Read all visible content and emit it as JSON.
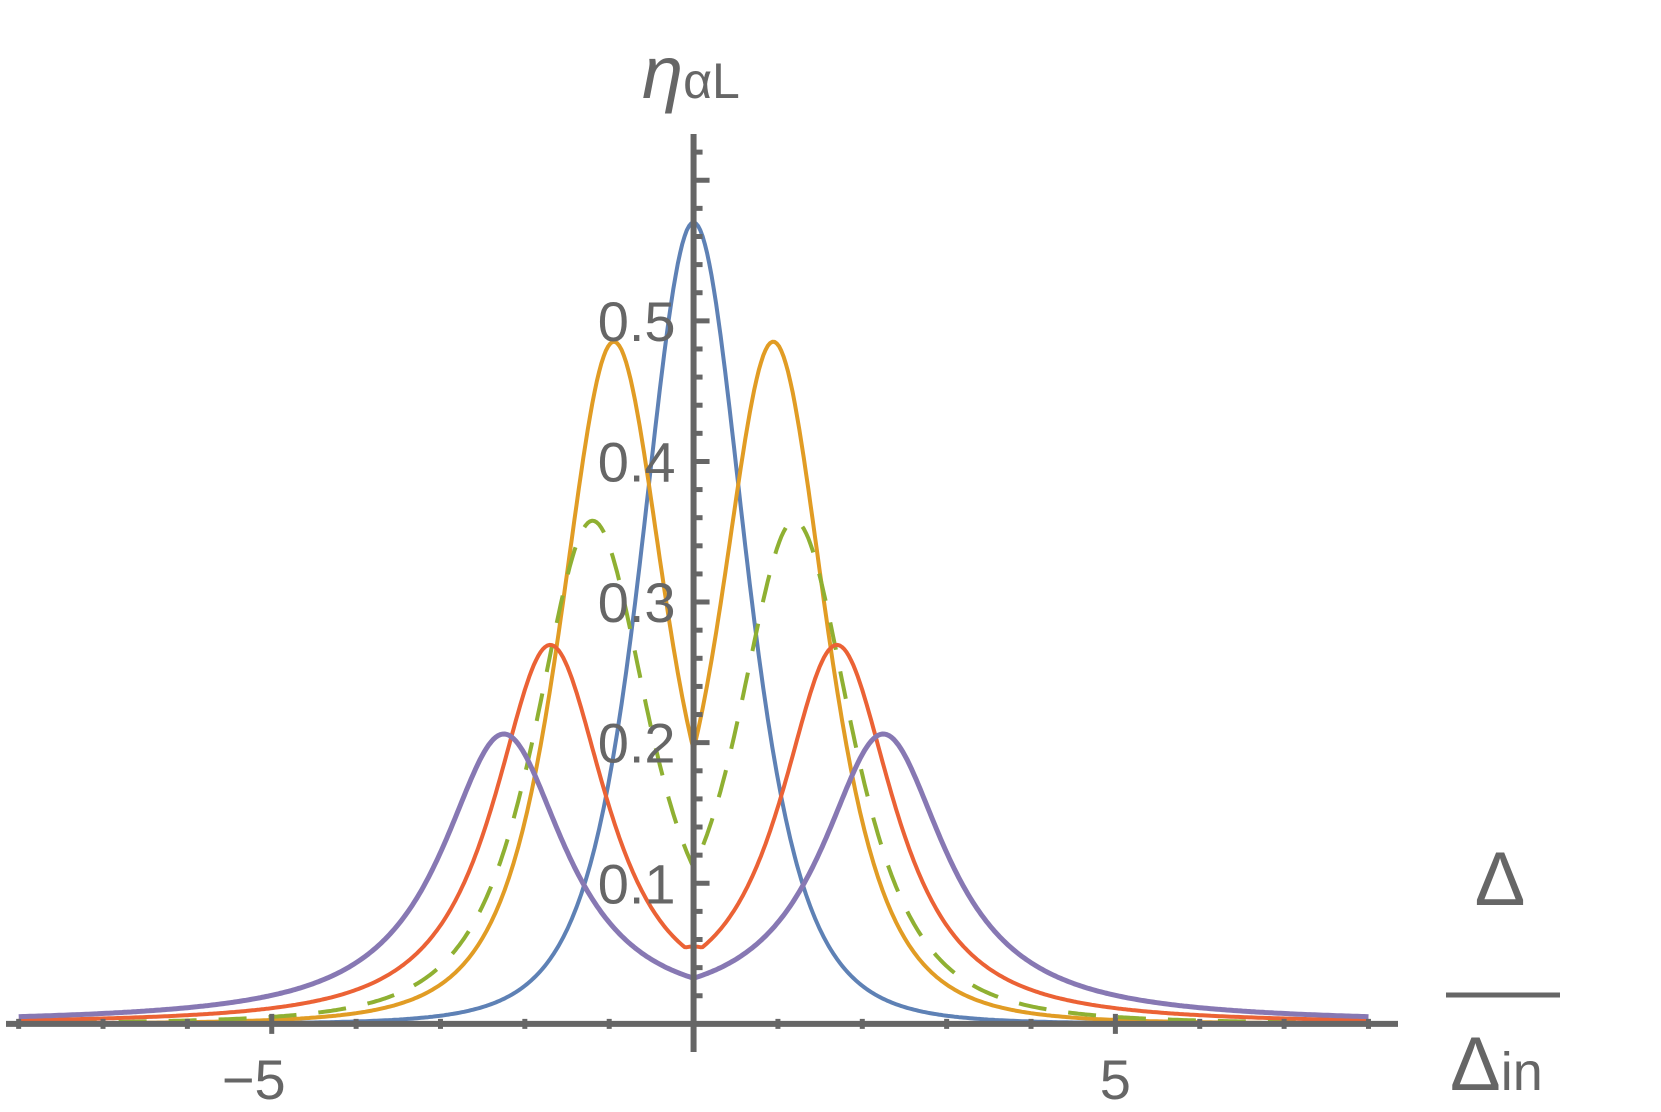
{
  "chart_data": {
    "type": "line",
    "title": "",
    "ylabel": {
      "main": "η",
      "sub": "αL"
    },
    "xlabel": {
      "numerator": "Δ",
      "denominator": "Δ",
      "denominator_sub": "in"
    },
    "xlim": [
      -8.15,
      8.35
    ],
    "ylim": [
      -0.02,
      0.64
    ],
    "x_ticks": [
      -5,
      5
    ],
    "x_tick_labels": [
      "−5",
      "5"
    ],
    "y_ticks": [
      0.1,
      0.2,
      0.3,
      0.4,
      0.5
    ],
    "y_tick_labels": [
      "0.1",
      "0.2",
      "0.3",
      "0.4",
      "0.5"
    ],
    "grid": false,
    "legend": "none",
    "series": [
      {
        "color": "#5e81b5",
        "dashed": false,
        "width": 4,
        "x_range": [
          -8,
          8
        ],
        "model": {
          "a": 0.57,
          "d": 0,
          "g": 1.25,
          "p": 2.4
        }
      },
      {
        "color": "#e19c24",
        "dashed": false,
        "width": 4,
        "x_range": [
          -8,
          8
        ],
        "model": {
          "a": 0.48,
          "d": 0.95,
          "g": 1.15,
          "p": 2.0
        }
      },
      {
        "color": "#8fb032",
        "dashed": true,
        "width": 4,
        "x_range": [
          -8,
          8
        ],
        "model": {
          "a": 0.355,
          "d": 1.2,
          "g": 1.12,
          "p": 1.7
        }
      },
      {
        "color": "#eb6235",
        "dashed": false,
        "width": 4,
        "x_range": [
          -8,
          8
        ],
        "model": {
          "a": 0.268,
          "d": 1.7,
          "g": 0.9,
          "p": 1.2,
          "b": 0.055
        }
      },
      {
        "color": "#8778b3",
        "dashed": false,
        "width": 5,
        "x_range": [
          -8,
          8
        ],
        "model": {
          "a": 0.205,
          "d": 2.25,
          "g": 0.9,
          "p": 1.0
        }
      }
    ]
  }
}
